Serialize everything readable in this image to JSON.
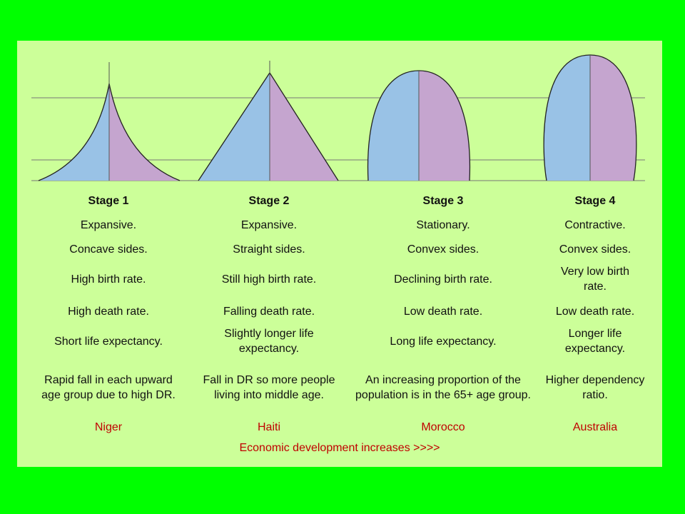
{
  "colors": {
    "background": "#00ff00",
    "panel": "#ccff99",
    "male": "#99c2e6",
    "female": "#c5a5cf",
    "country_text": "#c00000"
  },
  "stages": [
    {
      "title": "Stage 1",
      "shape": "concave-pyramid",
      "type": "Expansive.",
      "sides": "Concave sides.",
      "birth_rate": "High birth rate.",
      "death_rate": "High death rate.",
      "life_expectancy": "Short life expectancy.",
      "description": "Rapid fall in each upward age group due to high DR.",
      "country": "Niger"
    },
    {
      "title": "Stage 2",
      "shape": "straight-pyramid",
      "type": "Expansive.",
      "sides": "Straight sides.",
      "birth_rate": "Still high birth rate.",
      "death_rate": "Falling death rate.",
      "life_expectancy": "Slightly longer life expectancy.",
      "description": "Fall in DR so more people living into middle age.",
      "country": "Haiti"
    },
    {
      "title": "Stage 3",
      "shape": "dome",
      "type": "Stationary.",
      "sides": "Convex sides.",
      "birth_rate": "Declining birth rate.",
      "death_rate": "Low death rate.",
      "life_expectancy": "Long life expectancy.",
      "description": "An increasing proportion of the population is in the 65+ age group.",
      "country": "Morocco"
    },
    {
      "title": "Stage 4",
      "shape": "egg",
      "type": "Contractive.",
      "sides": "Convex sides.",
      "birth_rate": "Very low birth rate.",
      "death_rate": "Low death rate.",
      "life_expectancy": "Longer life expectancy.",
      "description": "Higher dependency ratio.",
      "country": "Australia"
    }
  ],
  "footer": "Economic development increases >>>>"
}
